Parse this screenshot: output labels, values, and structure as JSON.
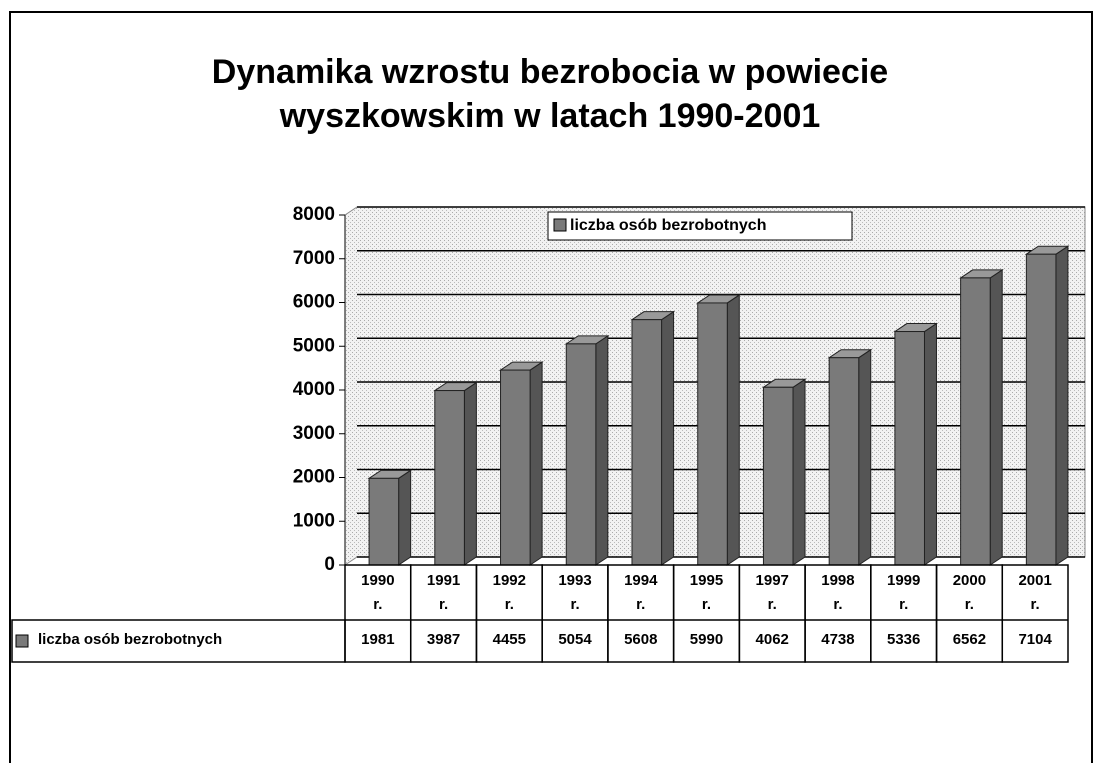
{
  "chart_data": {
    "type": "bar3d",
    "title": "Dynamika wzrostu bezrobocia w powiecie wyszkowskim w latach 1990-2001",
    "categories": [
      "1990 r.",
      "1991 r.",
      "1992 r.",
      "1993 r.",
      "1994 r.",
      "1995 r.",
      "1997 r.",
      "1998 r.",
      "1999 r.",
      "2000 r.",
      "2001 r."
    ],
    "series": [
      {
        "name": "liczba osób bezrobotnych",
        "color": "#7a7a7a",
        "values": [
          1981,
          3987,
          4455,
          5054,
          5608,
          5990,
          4062,
          4738,
          5336,
          6562,
          7104
        ]
      }
    ],
    "ylim": [
      0,
      8000
    ],
    "yticks": [
      0,
      1000,
      2000,
      3000,
      4000,
      5000,
      6000,
      7000,
      8000
    ],
    "grid": true,
    "legend": "top",
    "data_table": true
  }
}
